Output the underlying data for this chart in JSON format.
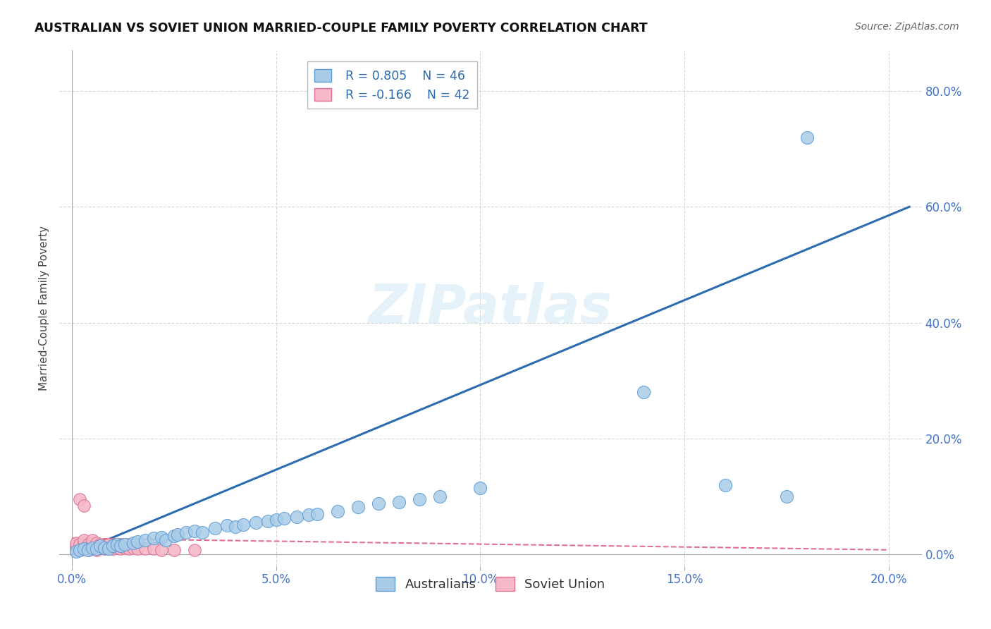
{
  "title": "AUSTRALIAN VS SOVIET UNION MARRIED-COUPLE FAMILY POVERTY CORRELATION CHART",
  "source": "Source: ZipAtlas.com",
  "ylabel": "Married-Couple Family Poverty",
  "watermark": "ZIPatlas",
  "legend_au": "Australians",
  "legend_su": "Soviet Union",
  "r_au": "R = 0.805",
  "n_au": "N = 46",
  "r_su": "R = -0.166",
  "n_su": "N = 42",
  "au_color": "#a8cce8",
  "su_color": "#f4b8c8",
  "au_edge_color": "#5b9bd5",
  "su_edge_color": "#e07090",
  "au_line_color": "#2b6cb0",
  "su_line_color": "#e07090",
  "grid_color": "#cccccc",
  "background_color": "#ffffff",
  "tick_color": "#4472c4",
  "au_scatter_x": [
    0.001,
    0.002,
    0.003,
    0.004,
    0.005,
    0.006,
    0.007,
    0.008,
    0.009,
    0.01,
    0.011,
    0.012,
    0.013,
    0.015,
    0.016,
    0.018,
    0.02,
    0.022,
    0.023,
    0.025,
    0.026,
    0.028,
    0.03,
    0.032,
    0.035,
    0.038,
    0.04,
    0.042,
    0.045,
    0.048,
    0.05,
    0.052,
    0.055,
    0.058,
    0.06,
    0.065,
    0.07,
    0.075,
    0.08,
    0.085,
    0.09,
    0.1,
    0.14,
    0.16,
    0.175,
    0.18
  ],
  "au_scatter_y": [
    0.005,
    0.008,
    0.01,
    0.008,
    0.012,
    0.01,
    0.015,
    0.012,
    0.01,
    0.015,
    0.018,
    0.015,
    0.018,
    0.02,
    0.022,
    0.025,
    0.028,
    0.03,
    0.025,
    0.032,
    0.035,
    0.038,
    0.04,
    0.038,
    0.045,
    0.05,
    0.048,
    0.052,
    0.055,
    0.058,
    0.06,
    0.062,
    0.065,
    0.068,
    0.07,
    0.075,
    0.082,
    0.088,
    0.09,
    0.095,
    0.1,
    0.115,
    0.28,
    0.12,
    0.1,
    0.72
  ],
  "su_scatter_x": [
    0.001,
    0.001,
    0.001,
    0.002,
    0.002,
    0.002,
    0.003,
    0.003,
    0.003,
    0.003,
    0.004,
    0.004,
    0.004,
    0.005,
    0.005,
    0.005,
    0.005,
    0.006,
    0.006,
    0.006,
    0.007,
    0.007,
    0.008,
    0.008,
    0.009,
    0.009,
    0.01,
    0.01,
    0.011,
    0.012,
    0.012,
    0.013,
    0.014,
    0.015,
    0.016,
    0.018,
    0.02,
    0.022,
    0.025,
    0.03,
    0.002,
    0.003
  ],
  "su_scatter_y": [
    0.01,
    0.015,
    0.02,
    0.008,
    0.012,
    0.018,
    0.01,
    0.015,
    0.02,
    0.025,
    0.008,
    0.012,
    0.018,
    0.01,
    0.015,
    0.02,
    0.025,
    0.008,
    0.015,
    0.02,
    0.012,
    0.018,
    0.01,
    0.015,
    0.012,
    0.018,
    0.01,
    0.015,
    0.012,
    0.01,
    0.015,
    0.012,
    0.01,
    0.012,
    0.01,
    0.01,
    0.01,
    0.008,
    0.008,
    0.008,
    0.095,
    0.085
  ]
}
